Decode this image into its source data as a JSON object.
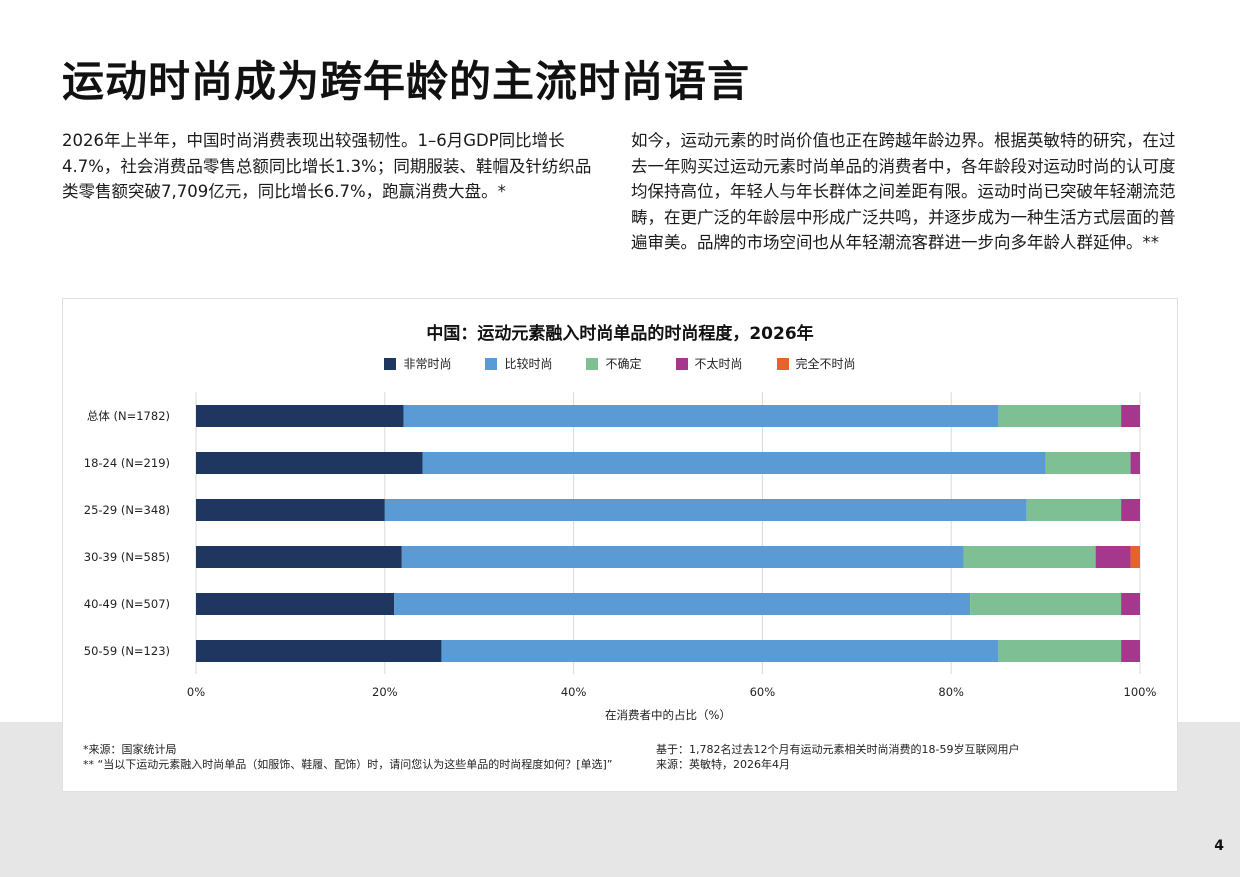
{
  "page": {
    "title": "运动时尚成为跨年龄的主流时尚语言",
    "intro_left": "2026年上半年，中国时尚消费表现出较强韧性。1–6月GDP同比增长4.7%，社会消费品零售总额同比增长1.3%；同期服装、鞋帽及针纺织品类零售额突破7,709亿元，同比增长6.7%，跑赢消费大盘。*",
    "intro_right": "如今，运动元素的时尚价值也正在跨越年龄边界。根据英敏特的研究，在过去一年购买过运动元素时尚单品的消费者中，各年龄段对运动时尚的认可度均保持高位，年轻人与年长群体之间差距有限。运动时尚已突破年轻潮流范畴，在更广泛的年龄层中形成广泛共鸣，并逐步成为一种生活方式层面的普遍审美。品牌的市场空间也从年轻潮流客群进一步向多年龄人群延伸。**",
    "page_number": "4"
  },
  "footnotes": {
    "source_1": "*来源：国家统计局",
    "question": "** “当以下运动元素融入时尚单品（如服饰、鞋履、配饰）时，请问您认为这些单品的时尚程度如何？[单选]”",
    "base": "基于：1,782名过去12个月有运动元素相关时尚消费的18-59岁互联网用户",
    "source_2": "来源：英敏特，2026年4月"
  },
  "colors": {
    "very_fashionable": "#1f3660",
    "fashionable": "#5b9bd5",
    "unsure": "#7fbf94",
    "not_very": "#a5378d",
    "not_at_all": "#e8632b",
    "gridline": "#d9d9d9",
    "axis_text": "#222222"
  },
  "chart_data": {
    "type": "bar",
    "orientation": "horizontal",
    "stacked": true,
    "title": "中国：运动元素融入时尚单品的时尚程度，2026年",
    "xlabel": "在消费者中的占比（%）",
    "ylabel": "",
    "xlim": [
      0,
      100
    ],
    "xticks": [
      "0%",
      "20%",
      "40%",
      "60%",
      "80%",
      "100%"
    ],
    "grid": "vertical",
    "legend_position": "top",
    "categories": [
      "总体 (N=1782)",
      "18-24 (N=219)",
      "25-29 (N=348)",
      "30-39 (N=585)",
      "40-49 (N=507)",
      "50-59 (N=123)"
    ],
    "series": [
      {
        "name": "非常时尚",
        "values": [
          22,
          24,
          20,
          21.8,
          21,
          26
        ]
      },
      {
        "name": "比较时尚",
        "values": [
          63,
          66,
          68,
          59.5,
          61,
          59
        ]
      },
      {
        "name": "不确定",
        "values": [
          13,
          9,
          10,
          14,
          16,
          13
        ]
      },
      {
        "name": "不太时尚",
        "values": [
          2,
          1,
          2,
          3.7,
          2,
          2
        ]
      },
      {
        "name": "完全不时尚",
        "values": [
          0,
          0,
          0,
          1,
          0,
          0
        ]
      }
    ]
  }
}
